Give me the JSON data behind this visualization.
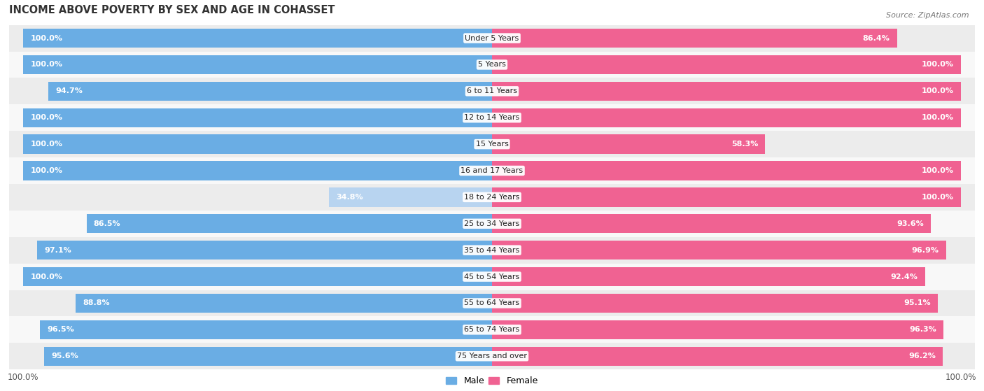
{
  "title": "INCOME ABOVE POVERTY BY SEX AND AGE IN COHASSET",
  "source": "Source: ZipAtlas.com",
  "categories": [
    "Under 5 Years",
    "5 Years",
    "6 to 11 Years",
    "12 to 14 Years",
    "15 Years",
    "16 and 17 Years",
    "18 to 24 Years",
    "25 to 34 Years",
    "35 to 44 Years",
    "45 to 54 Years",
    "55 to 64 Years",
    "65 to 74 Years",
    "75 Years and over"
  ],
  "male": [
    100.0,
    100.0,
    94.7,
    100.0,
    100.0,
    100.0,
    34.8,
    86.5,
    97.1,
    100.0,
    88.8,
    96.5,
    95.6
  ],
  "female": [
    86.4,
    100.0,
    100.0,
    100.0,
    58.3,
    100.0,
    100.0,
    93.6,
    96.9,
    92.4,
    95.1,
    96.3,
    96.2
  ],
  "male_color": "#6aade4",
  "female_color": "#f06292",
  "male_light_color": "#b8d4f0",
  "female_light_color": "#f8bbd0",
  "background_color": "#ffffff",
  "row_color_even": "#ececec",
  "row_color_odd": "#f8f8f8",
  "title_fontsize": 10.5,
  "label_fontsize": 8,
  "category_fontsize": 8,
  "legend_fontsize": 9,
  "source_fontsize": 8,
  "bar_height": 0.72
}
